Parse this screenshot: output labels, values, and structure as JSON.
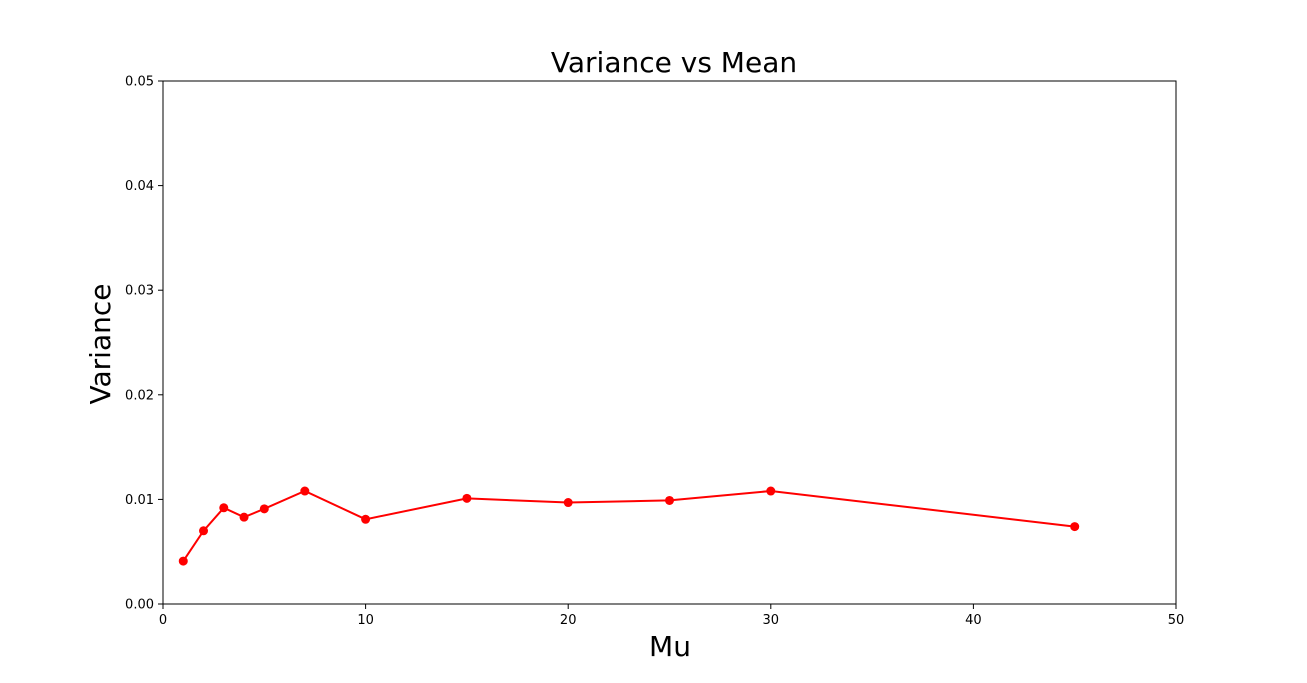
{
  "chart_data": {
    "type": "line",
    "title": "Variance vs Mean",
    "xlabel": "Mu",
    "ylabel": "Variance",
    "xlim": [
      0,
      50
    ],
    "ylim": [
      0,
      0.05
    ],
    "xticks": [
      "0",
      "10",
      "20",
      "30",
      "40",
      "50"
    ],
    "yticks": [
      "0.00",
      "0.01",
      "0.02",
      "0.03",
      "0.04",
      "0.05"
    ],
    "grid": false,
    "series": [
      {
        "color": "#ff0000",
        "marker": "circle",
        "x": [
          1,
          2,
          3,
          4,
          5,
          7,
          10,
          15,
          20,
          25,
          30,
          45
        ],
        "y": [
          0.0041,
          0.007,
          0.0092,
          0.0083,
          0.0091,
          0.0108,
          0.0081,
          0.0101,
          0.0097,
          0.0099,
          0.0108,
          0.0074
        ]
      }
    ]
  }
}
